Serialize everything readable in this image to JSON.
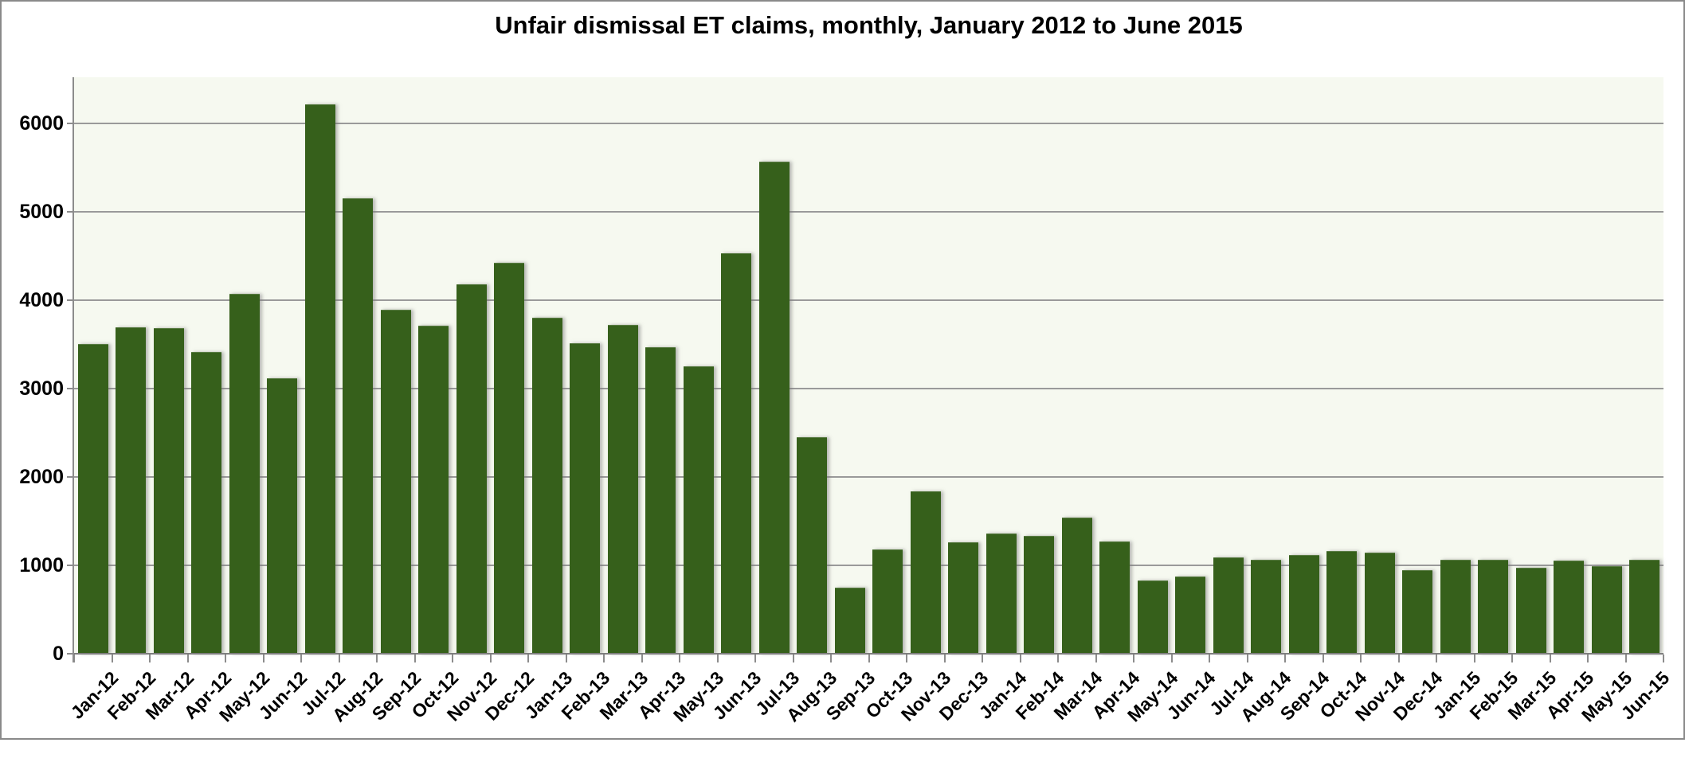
{
  "title": "Unfair dismissal ET claims, monthly, January 2012 to June 2015",
  "chart_data": {
    "type": "bar",
    "title": "Unfair dismissal ET claims, monthly, January 2012 to June 2015",
    "xlabel": "",
    "ylabel": "",
    "ylim": [
      0,
      6520
    ],
    "yticks": [
      0,
      1000,
      2000,
      3000,
      4000,
      5000,
      6000
    ],
    "grid": "horizontal",
    "legend": "none",
    "bar_color": "#36601b",
    "plot_background": "#f6f9f0",
    "gridline_color": "#9a9a9a",
    "categories": [
      "Jan-12",
      "Feb-12",
      "Mar-12",
      "Apr-12",
      "May-12",
      "Jun-12",
      "Jul-12",
      "Aug-12",
      "Sep-12",
      "Oct-12",
      "Nov-12",
      "Dec-12",
      "Jan-13",
      "Feb-13",
      "Mar-13",
      "Apr-13",
      "May-13",
      "Jun-13",
      "Jul-13",
      "Aug-13",
      "Sep-13",
      "Oct-13",
      "Nov-13",
      "Dec-13",
      "Jan-14",
      "Feb-14",
      "Mar-14",
      "Apr-14",
      "May-14",
      "Jun-14",
      "Jul-14",
      "Aug-14",
      "Sep-14",
      "Oct-14",
      "Nov-14",
      "Dec-14",
      "Jan-15",
      "Feb-15",
      "Mar-15",
      "Apr-15",
      "May-15",
      "Jun-15"
    ],
    "values": [
      3500,
      3690,
      3680,
      3410,
      4070,
      3120,
      6210,
      5150,
      3890,
      3710,
      4180,
      4420,
      3800,
      3510,
      3720,
      3470,
      3250,
      4530,
      5570,
      2450,
      750,
      1180,
      1840,
      1260,
      1360,
      1330,
      1540,
      1270,
      830,
      870,
      1090,
      1060,
      1120,
      1160,
      1140,
      950,
      1060,
      1060,
      970,
      1050,
      990,
      1060
    ]
  }
}
